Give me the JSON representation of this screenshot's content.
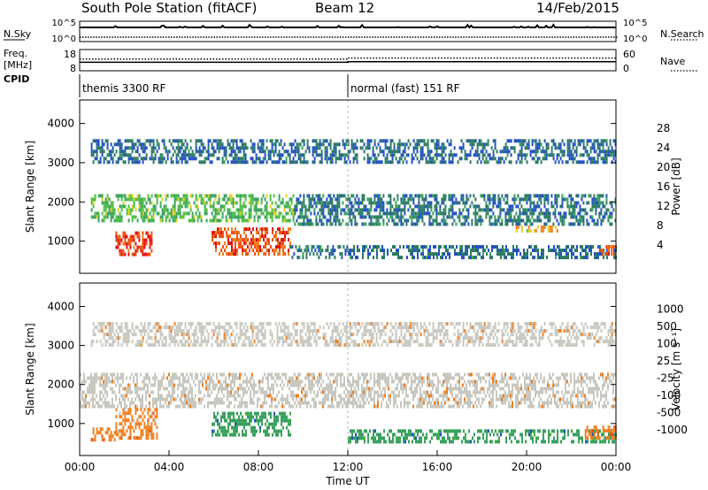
{
  "header": {
    "station": "South Pole Station (fitACF)",
    "beam": "Beam 12",
    "date": "14/Feb/2015"
  },
  "side_labels": {
    "nsky": "N.Sky",
    "freq_line1": "Freq.",
    "freq_line2": "[MHz]",
    "cpid": "CPID",
    "nsearch": "N.Search",
    "nave": "Nave"
  },
  "colors": {
    "power": [
      "#1010e0",
      "#2050c0",
      "#2a7a60",
      "#3aa060",
      "#50c040",
      "#e0d020",
      "#f08020",
      "#f05010",
      "#e01010"
    ],
    "velocity": [
      "#e01010",
      "#f05010",
      "#f08020",
      "#c8c8c0",
      "#c8c8c0",
      "#40b040",
      "#3aa060",
      "#2050c0",
      "#1010e0"
    ]
  },
  "chart_data": [
    {
      "type": "line",
      "panel": "noise",
      "title": "",
      "series": [
        {
          "name": "N.Sky",
          "style": "solid"
        },
        {
          "name": "N.Search",
          "style": "dotted"
        }
      ],
      "yticks_left": [
        "10^5",
        "10^0"
      ],
      "yticks_right": [
        "10^5",
        "10^0"
      ],
      "xlim": [
        "00:00",
        "24:00"
      ],
      "ylog": true
    },
    {
      "type": "line",
      "panel": "frequency",
      "series": [
        {
          "name": "Freq. [MHz]",
          "style": "solid",
          "x": [
            0,
            12,
            12,
            24
          ],
          "values": [
            12.0,
            12.0,
            12.3,
            12.3
          ]
        },
        {
          "name": "Nave",
          "style": "dotted",
          "x": [
            0,
            12,
            12,
            24
          ],
          "values": [
            33,
            33,
            36,
            36
          ]
        }
      ],
      "yticks_left": [
        "18",
        "8"
      ],
      "yticks_right": [
        "60",
        "0"
      ],
      "ylim_left": [
        8,
        18
      ],
      "ylim_right": [
        0,
        60
      ]
    },
    {
      "type": "table",
      "panel": "cpid",
      "segments": [
        {
          "start": 0,
          "end": 12,
          "label": "themis 3300 RF"
        },
        {
          "start": 12,
          "end": 24,
          "label": "normal (fast) 151 RF"
        }
      ]
    },
    {
      "type": "heatmap",
      "panel": "power",
      "ylabel": "Slant Range [km]",
      "yticks": [
        "1000",
        "2000",
        "3000",
        "4000"
      ],
      "ylim": [
        180,
        4600
      ],
      "xlim": [
        0,
        24
      ],
      "colorbar": {
        "label": "Power [dB]",
        "ticks": [
          "4",
          "8",
          "12",
          "16",
          "20",
          "24",
          "28"
        ],
        "range": [
          0,
          30
        ]
      },
      "bands": [
        {
          "x": [
            0.5,
            9.6
          ],
          "range": [
            1500,
            2200
          ],
          "value": 14
        },
        {
          "x": [
            9.6,
            24
          ],
          "range": [
            1400,
            2200
          ],
          "value": 7
        },
        {
          "x": [
            0.5,
            24
          ],
          "range": [
            3000,
            3600
          ],
          "value": 6
        },
        {
          "x": [
            1.6,
            3.2
          ],
          "range": [
            650,
            1250
          ],
          "value": 27
        },
        {
          "x": [
            5.9,
            9.4
          ],
          "range": [
            700,
            1350
          ],
          "value": 26
        },
        {
          "x": [
            9.4,
            12.0
          ],
          "range": [
            600,
            900
          ],
          "value": 7
        },
        {
          "x": [
            12.0,
            24
          ],
          "range": [
            550,
            900
          ],
          "value": 6
        },
        {
          "x": [
            19.2,
            21.4
          ],
          "range": [
            1250,
            1400
          ],
          "value": 20
        },
        {
          "x": [
            23.3,
            24
          ],
          "range": [
            650,
            900
          ],
          "value": 26
        }
      ]
    },
    {
      "type": "heatmap",
      "panel": "velocity",
      "ylabel": "Slant Range [km]",
      "xlabel": "Time UT",
      "yticks": [
        "1000",
        "2000",
        "3000",
        "4000"
      ],
      "ylim": [
        180,
        4600
      ],
      "xlim": [
        0,
        24
      ],
      "xticks": [
        "00:00",
        "04:00",
        "08:00",
        "12:00",
        "16:00",
        "20:00",
        "00:00"
      ],
      "colorbar": {
        "label": "Velocity [m s⁻¹]",
        "ticks": [
          "-1000",
          "-500",
          "-100",
          "-25",
          "25",
          "100",
          "500",
          "1000"
        ]
      },
      "bands": [
        {
          "x": [
            0.0,
            24
          ],
          "range": [
            1400,
            2300
          ],
          "value": 0
        },
        {
          "x": [
            0.5,
            24
          ],
          "range": [
            3000,
            3600
          ],
          "value": 0
        },
        {
          "x": [
            1.6,
            3.5
          ],
          "range": [
            650,
            1400
          ],
          "value": -300
        },
        {
          "x": [
            5.9,
            9.4
          ],
          "range": [
            700,
            1300
          ],
          "value": 150
        },
        {
          "x": [
            0.5,
            1.6
          ],
          "range": [
            600,
            900
          ],
          "value": -200
        },
        {
          "x": [
            12.0,
            24
          ],
          "range": [
            550,
            850
          ],
          "value": 120
        },
        {
          "x": [
            22.6,
            24
          ],
          "range": [
            600,
            950
          ],
          "value": -300
        }
      ]
    }
  ]
}
